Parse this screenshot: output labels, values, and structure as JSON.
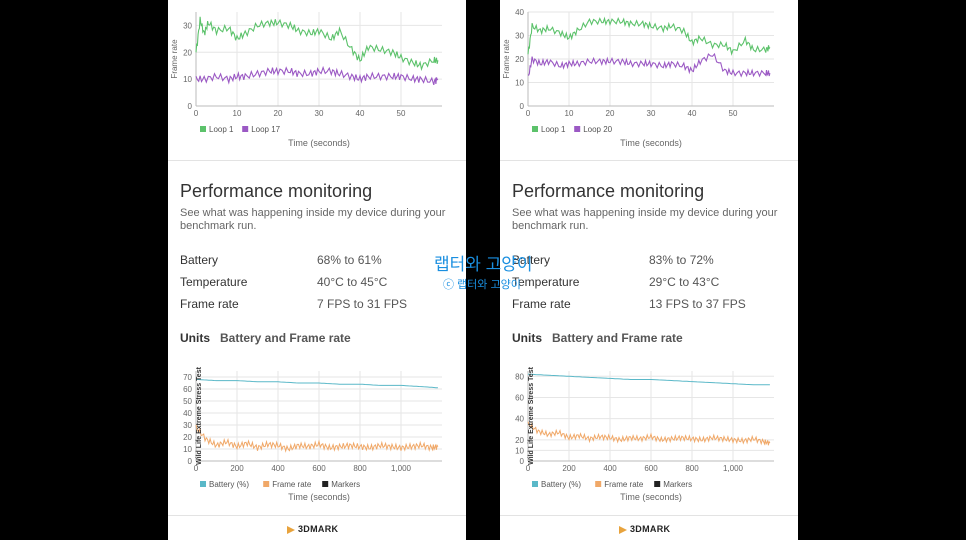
{
  "panels": [
    {
      "top_chart": {
        "ylabel": "Frame rate",
        "xlabel": "Time (seconds)",
        "ymax": 35,
        "y_ticks": [
          0,
          10,
          20,
          30
        ],
        "xmax": 60,
        "x_ticks": [
          0,
          10,
          20,
          30,
          40,
          50
        ],
        "legend": [
          "Loop 1",
          "Loop 17"
        ],
        "colors": [
          "#5cc26b",
          "#9b59c4"
        ]
      },
      "perf": {
        "title": "Performance monitoring",
        "subtitle": "See what was happening inside my device during your benchmark run.",
        "rows": [
          {
            "label": "Battery",
            "value": "68% to 61%"
          },
          {
            "label": "Temperature",
            "value": "40°C to 45°C"
          },
          {
            "label": "Frame rate",
            "value": "7 FPS to 31 FPS"
          }
        ],
        "units_label": "Units",
        "units_value": "Battery and Frame rate"
      },
      "bottom_chart": {
        "side_label": "Wild Life Extreme Stress Test",
        "xlabel": "Time (seconds)",
        "ymax": 75,
        "y_ticks": [
          0,
          10,
          20,
          30,
          40,
          50,
          60,
          70
        ],
        "xmax": 1200,
        "x_ticks": [
          0,
          200,
          400,
          600,
          800,
          1000
        ],
        "x_tick_labels": [
          "0",
          "200",
          "400",
          "600",
          "800",
          "1,000"
        ],
        "legend": [
          "Battery (%)",
          "Frame rate",
          "Markers"
        ],
        "colors": [
          "#5ab8c8",
          "#f0a868",
          "#222222"
        ]
      },
      "logo": "3DMARK"
    },
    {
      "top_chart": {
        "ylabel": "Frame rate",
        "xlabel": "Time (seconds)",
        "ymax": 40,
        "y_ticks": [
          0,
          10,
          20,
          30,
          40
        ],
        "xmax": 60,
        "x_ticks": [
          0,
          10,
          20,
          30,
          40,
          50
        ],
        "legend": [
          "Loop 1",
          "Loop 20"
        ],
        "colors": [
          "#5cc26b",
          "#9b59c4"
        ]
      },
      "perf": {
        "title": "Performance monitoring",
        "subtitle": "See what was happening inside my device during your benchmark run.",
        "rows": [
          {
            "label": "Battery",
            "value": "83% to 72%"
          },
          {
            "label": "Temperature",
            "value": "29°C to 43°C"
          },
          {
            "label": "Frame rate",
            "value": "13 FPS to 37 FPS"
          }
        ],
        "units_label": "Units",
        "units_value": "Battery and Frame rate"
      },
      "bottom_chart": {
        "side_label": "Wild Life Extreme Stress Test",
        "xlabel": "Time (seconds)",
        "ymax": 85,
        "y_ticks": [
          0,
          10,
          20,
          40,
          60,
          80
        ],
        "xmax": 1200,
        "x_ticks": [
          0,
          200,
          400,
          600,
          800,
          1000
        ],
        "x_tick_labels": [
          "0",
          "200",
          "400",
          "600",
          "800",
          "1,000"
        ],
        "legend": [
          "Battery (%)",
          "Frame rate",
          "Markers"
        ],
        "colors": [
          "#5ab8c8",
          "#f0a868",
          "#222222"
        ]
      },
      "logo": "3DMARK"
    }
  ],
  "chart_data": [
    {
      "type": "line",
      "panel": "left",
      "xlabel": "Time (seconds)",
      "ylabel": "Frame rate",
      "xlim": [
        0,
        60
      ],
      "ylim": [
        0,
        35
      ],
      "series": [
        {
          "name": "Loop 1",
          "x": [
            0,
            1,
            2,
            3,
            5,
            8,
            10,
            12,
            15,
            18,
            20,
            23,
            25,
            28,
            30,
            33,
            35,
            38,
            40,
            42,
            45,
            48,
            50,
            53,
            55,
            58,
            59
          ],
          "values": [
            20,
            32,
            27,
            31,
            28,
            29,
            25,
            27,
            30,
            31,
            31,
            30,
            28,
            27,
            28,
            25,
            28,
            21,
            17,
            22,
            21,
            20,
            18,
            16,
            15,
            17,
            17
          ]
        },
        {
          "name": "Loop 17",
          "x": [
            0,
            2,
            5,
            8,
            10,
            12,
            15,
            18,
            20,
            23,
            25,
            28,
            30,
            33,
            35,
            38,
            40,
            42,
            45,
            48,
            50,
            53,
            55,
            58,
            59
          ],
          "values": [
            10,
            10,
            11,
            10,
            11,
            11,
            12,
            13,
            13,
            13,
            12,
            12,
            13,
            13,
            12,
            11,
            10,
            11,
            11,
            11,
            11,
            10,
            10,
            9,
            10
          ]
        }
      ]
    },
    {
      "type": "line",
      "panel": "right",
      "xlabel": "Time (seconds)",
      "ylabel": "Frame rate",
      "xlim": [
        0,
        60
      ],
      "ylim": [
        0,
        40
      ],
      "series": [
        {
          "name": "Loop 1",
          "x": [
            0,
            1,
            3,
            5,
            8,
            10,
            12,
            15,
            18,
            20,
            23,
            25,
            28,
            30,
            33,
            35,
            38,
            40,
            42,
            45,
            48,
            50,
            53,
            55,
            58,
            59
          ],
          "values": [
            22,
            34,
            32,
            33,
            31,
            29,
            32,
            36,
            36,
            36,
            36,
            35,
            35,
            34,
            33,
            34,
            32,
            27,
            29,
            26,
            26,
            23,
            28,
            24,
            24,
            25
          ]
        },
        {
          "name": "Loop 20",
          "x": [
            0,
            1,
            3,
            5,
            8,
            10,
            12,
            15,
            18,
            20,
            23,
            25,
            28,
            30,
            33,
            35,
            38,
            40,
            42,
            45,
            48,
            50,
            53,
            55,
            58,
            59
          ],
          "values": [
            12,
            20,
            18,
            19,
            17,
            18,
            18,
            19,
            19,
            19,
            19,
            18,
            18,
            18,
            17,
            18,
            17,
            15,
            19,
            22,
            15,
            14,
            14,
            14,
            14,
            14
          ]
        }
      ]
    },
    {
      "type": "line",
      "panel": "left",
      "xlabel": "Time (seconds)",
      "xlim": [
        0,
        1200
      ],
      "ylim": [
        0,
        75
      ],
      "series": [
        {
          "name": "Battery (%)",
          "x": [
            0,
            100,
            200,
            300,
            400,
            500,
            600,
            700,
            800,
            900,
            1000,
            1100,
            1180
          ],
          "values": [
            68,
            67,
            67,
            66,
            66,
            65,
            65,
            64,
            64,
            63,
            63,
            62,
            61
          ]
        },
        {
          "name": "Frame rate",
          "x": [
            0,
            50,
            100,
            150,
            200,
            250,
            300,
            350,
            400,
            450,
            500,
            550,
            600,
            650,
            700,
            750,
            800,
            850,
            900,
            950,
            1000,
            1050,
            1100,
            1150,
            1180
          ],
          "values": [
            28,
            18,
            13,
            16,
            12,
            15,
            11,
            14,
            13,
            10,
            13,
            12,
            14,
            11,
            12,
            13,
            12,
            11,
            13,
            12,
            11,
            12,
            13,
            11,
            12
          ]
        }
      ]
    },
    {
      "type": "line",
      "panel": "right",
      "xlabel": "Time (seconds)",
      "xlim": [
        0,
        1200
      ],
      "ylim": [
        0,
        85
      ],
      "series": [
        {
          "name": "Battery (%)",
          "x": [
            0,
            100,
            200,
            300,
            400,
            500,
            600,
            700,
            800,
            900,
            1000,
            1100,
            1180
          ],
          "values": [
            82,
            81,
            80,
            79,
            78,
            77,
            77,
            76,
            75,
            74,
            73,
            72,
            72
          ]
        },
        {
          "name": "Frame rate",
          "x": [
            0,
            50,
            100,
            150,
            200,
            250,
            300,
            350,
            400,
            450,
            500,
            550,
            600,
            650,
            700,
            750,
            800,
            850,
            900,
            950,
            1000,
            1050,
            1100,
            1150,
            1180
          ],
          "values": [
            35,
            28,
            25,
            27,
            22,
            24,
            21,
            23,
            22,
            20,
            22,
            21,
            23,
            20,
            21,
            22,
            21,
            20,
            22,
            21,
            20,
            19,
            21,
            18,
            17
          ]
        }
      ]
    }
  ],
  "watermark": {
    "main": "랩터와 고양이",
    "sub": "ⓒ 랩터와 고양이"
  }
}
